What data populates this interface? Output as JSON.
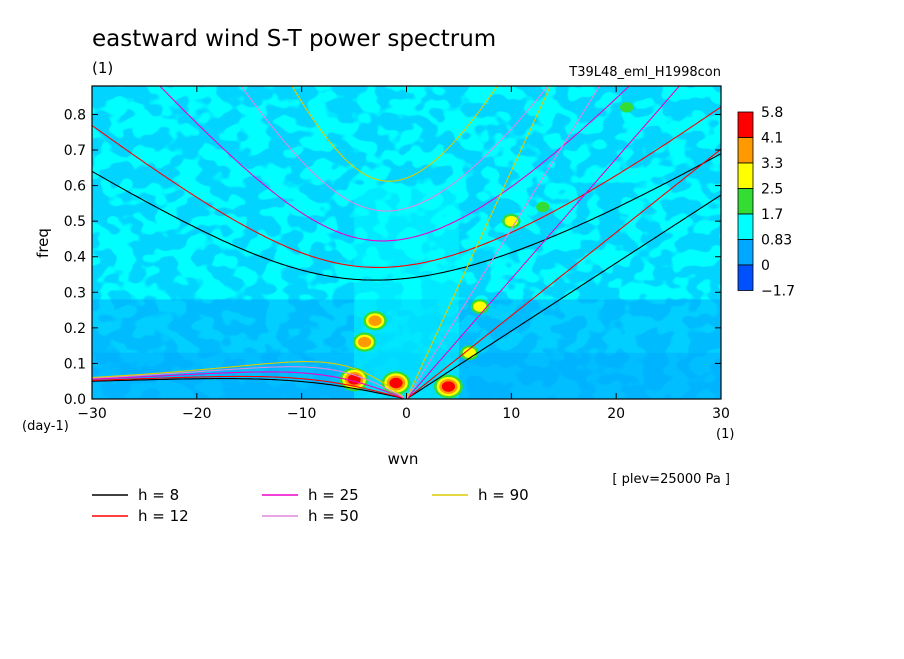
{
  "chart_data": {
    "type": "heatmap",
    "title": "eastward wind S-T power spectrum",
    "subtitle_left": "(1)",
    "subtitle_right": "T39L48_eml_H1998con",
    "xlabel": "wvn",
    "ylabel": "freq",
    "x_units": "(1)",
    "y_units": "(day-1)",
    "xlim": [
      -30,
      30
    ],
    "ylim": [
      0,
      0.88
    ],
    "xticks": [
      -30,
      -20,
      -10,
      0,
      10,
      20,
      30
    ],
    "yticks": [
      0.0,
      0.1,
      0.2,
      0.3,
      0.4,
      0.5,
      0.6,
      0.7,
      0.8
    ],
    "ytick_labels": [
      "0.0",
      "0.1",
      "0.2",
      "0.3",
      "0.4",
      "0.5",
      "0.6",
      "0.7",
      "0.8"
    ],
    "note": "[ plev=25000 Pa ]",
    "colorbar": {
      "levels": [
        "5.8",
        "4.1",
        "3.3",
        "2.5",
        "1.7",
        "0.83",
        "0",
        "-1.7"
      ],
      "colors": [
        "#ff0000",
        "#ff9900",
        "#ffff00",
        "#33dd33",
        "#00ffff",
        "#00a8ff",
        "#0050ff"
      ]
    },
    "heat_regions": [
      {
        "x": -5.0,
        "y": 0.055,
        "level": 5.8
      },
      {
        "x": -1.0,
        "y": 0.045,
        "level": 5.8
      },
      {
        "x": 4.0,
        "y": 0.035,
        "level": 4.1
      },
      {
        "x": -3.0,
        "y": 0.22,
        "level": 3.3
      },
      {
        "x": -4.0,
        "y": 0.16,
        "level": 3.3
      },
      {
        "x": 6.0,
        "y": 0.13,
        "level": 2.5
      },
      {
        "x": 7.0,
        "y": 0.26,
        "level": 2.5
      },
      {
        "x": 10.0,
        "y": 0.5,
        "level": 2.5
      },
      {
        "x": 13.0,
        "y": 0.54,
        "level": 1.7
      },
      {
        "x": 21.0,
        "y": 0.82,
        "level": 1.7
      }
    ],
    "dispersion_curves": [
      {
        "h_label": "h =  8",
        "h": 8,
        "color": "#000000"
      },
      {
        "h_label": "h = 12",
        "h": 12,
        "color": "#ff0000"
      },
      {
        "h_label": "h = 25",
        "h": 25,
        "color": "#ee00cc"
      },
      {
        "h_label": "h = 50",
        "h": 50,
        "color": "#dd88dd"
      },
      {
        "h_label": "h = 90",
        "h": 90,
        "color": "#ddcc00"
      }
    ]
  }
}
